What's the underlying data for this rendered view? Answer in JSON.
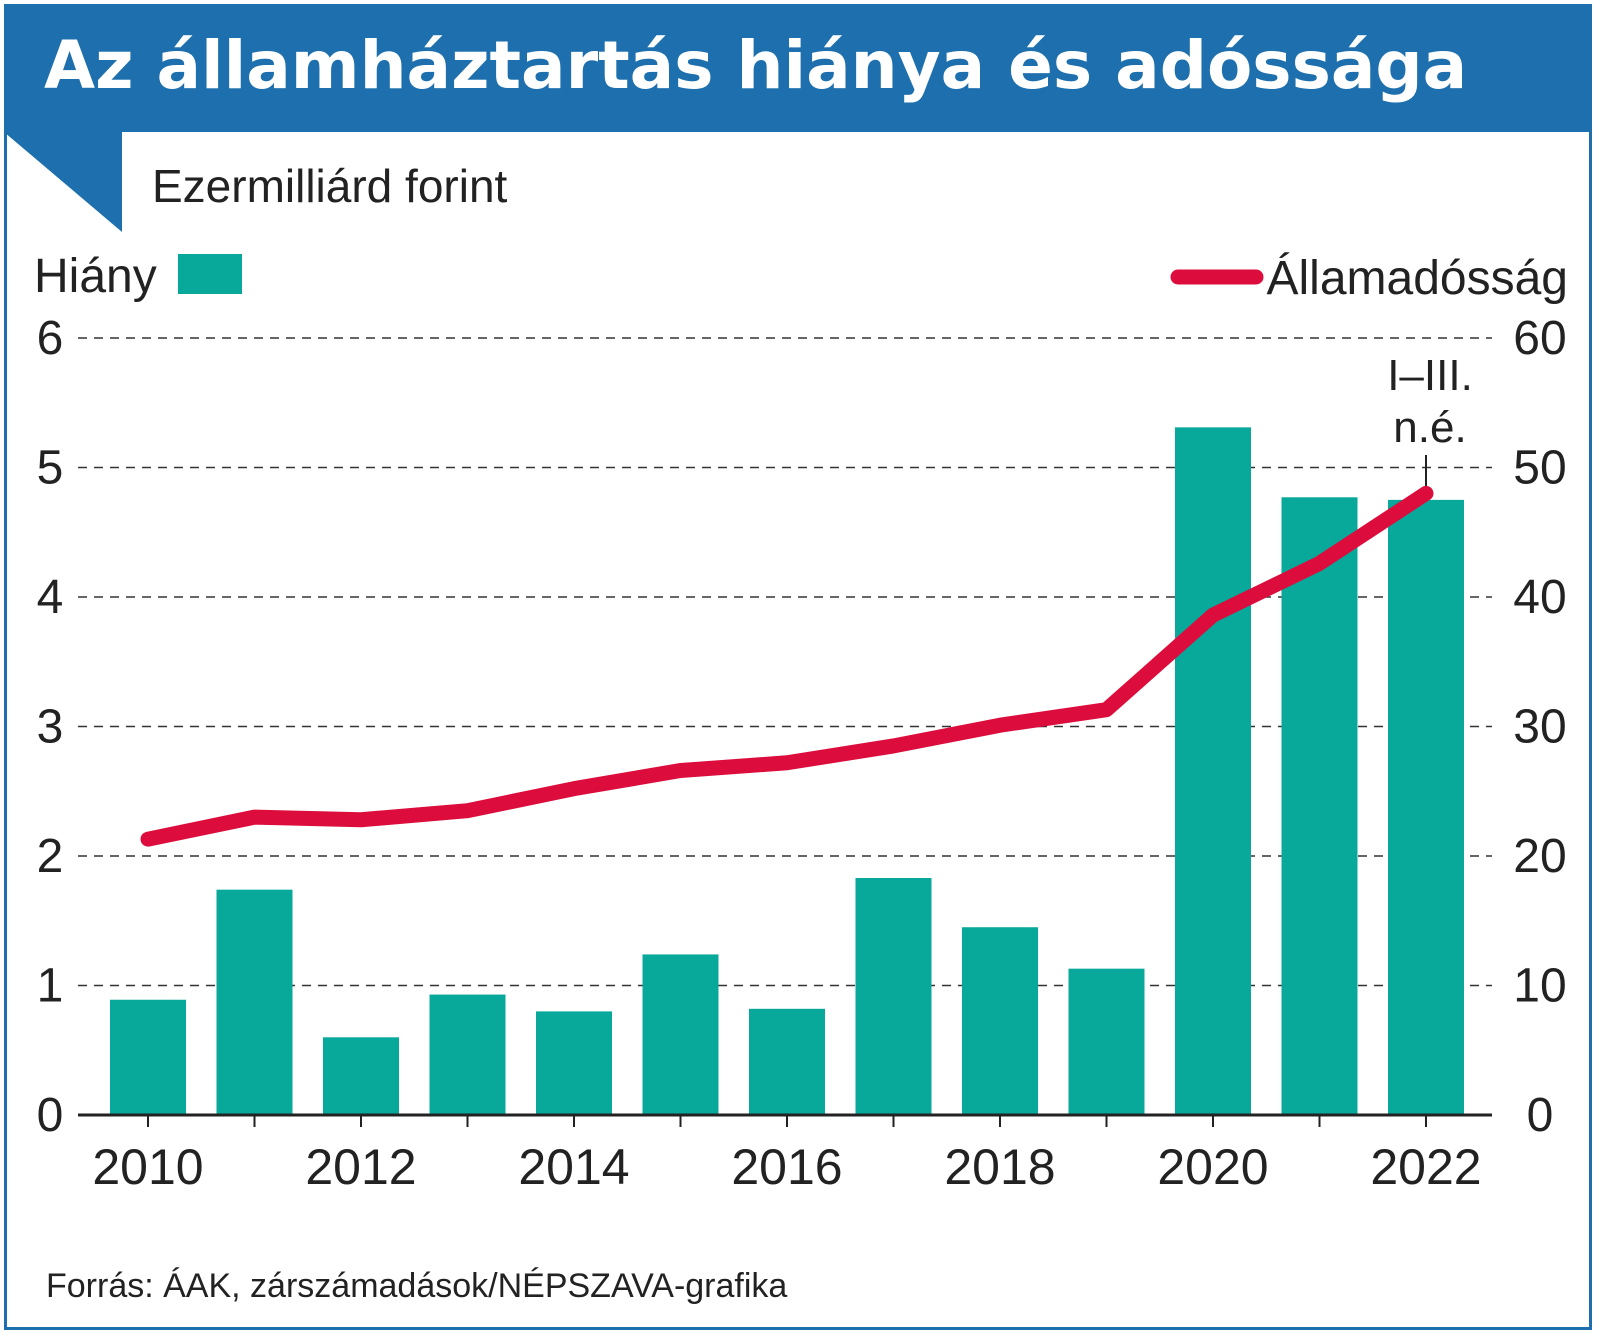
{
  "title": "Az államháztartás hiánya és adóssága",
  "unit_label": "Ezermilliárd forint",
  "source": "Forrás: ÁAK, zárszámadások/NÉPSZAVA-grafika",
  "colors": {
    "title_bg": "#1d70ad",
    "bar": "#08a89a",
    "line": "#dc0c3c",
    "text": "#222222",
    "grid": "#333333"
  },
  "chart_data": {
    "type": "bar+line",
    "x": [
      2010,
      2011,
      2012,
      2013,
      2014,
      2015,
      2016,
      2017,
      2018,
      2019,
      2020,
      2021,
      2022
    ],
    "x_tick_labels": [
      "2010",
      "2012",
      "2014",
      "2016",
      "2018",
      "2020",
      "2022"
    ],
    "left_axis": {
      "ylim": [
        0,
        6
      ],
      "ticks": [
        "0",
        "1",
        "2",
        "3",
        "4",
        "5",
        "6"
      ]
    },
    "right_axis": {
      "ylim": [
        0,
        60
      ],
      "ticks": [
        "0",
        "10",
        "20",
        "30",
        "40",
        "50",
        "60"
      ]
    },
    "grid": "dashed horizontal",
    "series": [
      {
        "name": "Hiány",
        "type": "bar",
        "axis": "left",
        "values": [
          0.89,
          1.74,
          0.6,
          0.93,
          0.8,
          1.24,
          0.82,
          1.83,
          1.45,
          1.13,
          5.31,
          4.77,
          4.75
        ]
      },
      {
        "name": "Államadósság",
        "type": "line",
        "axis": "right",
        "values": [
          21.3,
          23.0,
          22.8,
          23.5,
          25.2,
          26.6,
          27.2,
          28.5,
          30.1,
          31.3,
          38.6,
          42.6,
          48.0
        ]
      }
    ],
    "legend": [
      {
        "label": "Hiány",
        "position": "top-left"
      },
      {
        "label": "Államadósság",
        "position": "top-right"
      }
    ],
    "annotation": {
      "lines": [
        "I–III.",
        "n.é."
      ],
      "x": 2022
    }
  }
}
